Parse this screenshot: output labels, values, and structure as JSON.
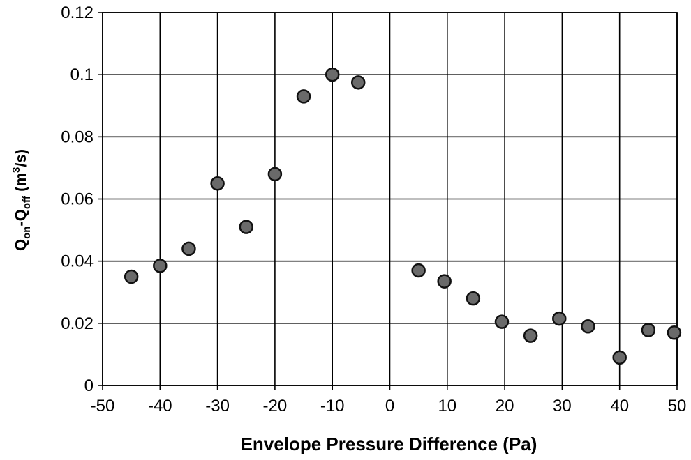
{
  "chart_data": {
    "type": "scatter",
    "title": "",
    "xlabel": "Envelope Pressure Difference (Pa)",
    "ylabel": "Q_on-Q_off (m^3/s)",
    "ylabel_parts": {
      "q1": "Q",
      "sub1": "on",
      "dash": "-Q",
      "sub2": "off",
      "units_open": " (m",
      "sup": "3",
      "units_close": "/s)"
    },
    "xlim": [
      -50,
      50
    ],
    "ylim": [
      0,
      0.12
    ],
    "x_ticks": [
      -50,
      -40,
      -30,
      -20,
      -10,
      0,
      10,
      20,
      30,
      40,
      50
    ],
    "x_tick_labels": [
      "-50",
      "-40",
      "-30",
      "-20",
      "-10",
      "0",
      "10",
      "20",
      "30",
      "40",
      "50"
    ],
    "y_ticks": [
      0,
      0.02,
      0.04,
      0.06,
      0.08,
      0.1,
      0.12
    ],
    "y_tick_labels": [
      "0",
      "0.02",
      "0.04",
      "0.06",
      "0.08",
      "0.1",
      "0.12"
    ],
    "grid": true,
    "legend": "none",
    "marker_color": "#6a6a6a",
    "marker_edge_color": "#111111",
    "points": [
      {
        "x": -45,
        "y": 0.035
      },
      {
        "x": -40,
        "y": 0.0385
      },
      {
        "x": -35,
        "y": 0.044
      },
      {
        "x": -30,
        "y": 0.065
      },
      {
        "x": -25,
        "y": 0.051
      },
      {
        "x": -20,
        "y": 0.068
      },
      {
        "x": -15,
        "y": 0.093
      },
      {
        "x": -10,
        "y": 0.1
      },
      {
        "x": -5.5,
        "y": 0.0975
      },
      {
        "x": 5,
        "y": 0.037
      },
      {
        "x": 9.5,
        "y": 0.0335
      },
      {
        "x": 14.5,
        "y": 0.028
      },
      {
        "x": 19.5,
        "y": 0.0205
      },
      {
        "x": 24.5,
        "y": 0.016
      },
      {
        "x": 29.5,
        "y": 0.0215
      },
      {
        "x": 34.5,
        "y": 0.019
      },
      {
        "x": 40,
        "y": 0.009
      },
      {
        "x": 45,
        "y": 0.0178
      },
      {
        "x": 49.5,
        "y": 0.017
      }
    ]
  }
}
